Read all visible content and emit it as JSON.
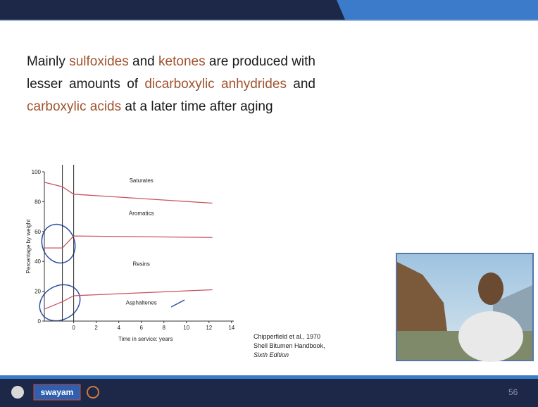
{
  "slide": {
    "paragraph": [
      [
        {
          "text": "Mainly ",
          "color": "#1a1a1a"
        },
        {
          "text": "sulfoxides",
          "color": "#a0522d"
        },
        {
          "text": " and ",
          "color": "#1a1a1a"
        },
        {
          "text": "ketones",
          "color": "#a0522d"
        },
        {
          "text": " are produced with",
          "color": "#1a1a1a"
        }
      ],
      [
        {
          "text": "lesser amounts of ",
          "color": "#1a1a1a"
        },
        {
          "text": "dicarboxylic anhydrides",
          "color": "#a0522d"
        },
        {
          "text": " and",
          "color": "#1a1a1a"
        }
      ],
      [
        {
          "text": "carboxylic acids",
          "color": "#a0522d"
        },
        {
          "text": " at a later time after aging",
          "color": "#1a1a1a"
        }
      ]
    ],
    "citation": [
      "Chipperfield et al., 1970",
      "Shell Bitumen Handbook,",
      "Sixth Edition"
    ],
    "footer": {
      "logo": "swayam",
      "page_number": "56"
    }
  },
  "chart_data": {
    "type": "line",
    "xlabel": "Time in service: years",
    "ylabel": "Percentage by weight",
    "x": [
      -2.6,
      -1,
      0,
      12.3
    ],
    "series": [
      {
        "name": "Saturates / Aromatics boundary",
        "color": "#c9535f",
        "values": [
          93,
          90,
          85,
          79
        ]
      },
      {
        "name": "Aromatics / Resins boundary",
        "color": "#c9535f",
        "values": [
          49,
          49,
          57,
          56
        ]
      },
      {
        "name": "Resins / Asphaltenes boundary",
        "color": "#c9535f",
        "values": [
          8,
          13,
          17,
          21
        ]
      }
    ],
    "annotations": [
      "Saturates",
      "Aromatics",
      "Resins",
      "Asphaltenes"
    ],
    "vlines": [
      -1,
      0
    ],
    "xlim": [
      -2.6,
      14.2
    ],
    "ylim": [
      0,
      100
    ],
    "xticks": [
      0,
      2,
      4,
      6,
      8,
      10,
      12,
      14
    ],
    "yticks": [
      0,
      20,
      40,
      60,
      80,
      100
    ]
  }
}
